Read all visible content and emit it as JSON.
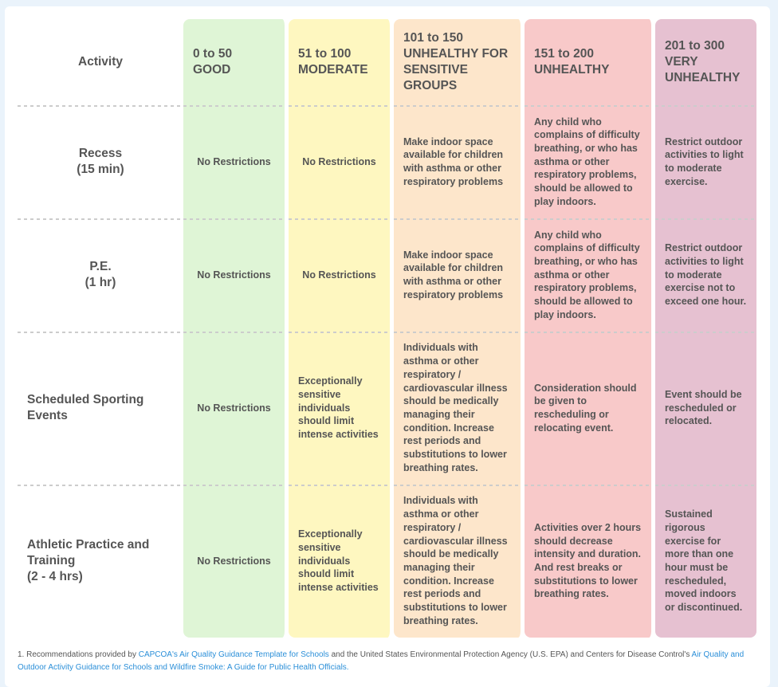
{
  "header": {
    "activity": "Activity",
    "levels": [
      {
        "range": "0 to 50",
        "label": "GOOD",
        "color": "#dff5d6"
      },
      {
        "range": "51 to 100",
        "label": "MODERATE",
        "color": "#fef7c0"
      },
      {
        "range": "101 to 150",
        "label": "UNHEALTHY FOR SENSITIVE GROUPS",
        "color": "#fde6cb"
      },
      {
        "range": "151 to 200",
        "label": "UNHEALTHY",
        "color": "#f8c9c9"
      },
      {
        "range": "201 to 300",
        "label": "VERY UNHEALTHY",
        "color": "#e6c1d1"
      }
    ]
  },
  "rows": [
    {
      "activity": "Recess",
      "sub": "(15 min)",
      "cells": [
        "No Restrictions",
        "No Restrictions",
        "Make indoor space available for children with asthma or other respiratory problems",
        "Any child who complains of difficulty breathing, or who has asthma or other respiratory problems, should be allowed to play indoors.",
        "Restrict outdoor activities to light to moderate exercise."
      ]
    },
    {
      "activity": "P.E.",
      "sub": "(1 hr)",
      "cells": [
        "No Restrictions",
        "No Restrictions",
        "Make indoor space available for children with asthma or other respiratory problems",
        "Any child who complains of difficulty breathing, or who has asthma or other respiratory problems, should be allowed to play indoors.",
        "Restrict outdoor activities to light to moderate exercise not to exceed one hour."
      ]
    },
    {
      "activity": "Scheduled Sporting Events",
      "sub": "",
      "cells": [
        "No Restrictions",
        "Exceptionally sensitive individuals should limit intense activities",
        "Individuals with asthma or other respiratory / cardiovascular illness should be medically managing their condition. Increase rest periods and substitutions to lower breathing rates.",
        "Consideration should be given to rescheduling or relocating event.",
        "Event should be rescheduled or relocated."
      ]
    },
    {
      "activity": "Athletic Practice and Training",
      "sub": "(2 - 4 hrs)",
      "cells": [
        "No Restrictions",
        "Exceptionally sensitive individuals should limit intense activities",
        "Individuals with asthma or other respiratory / cardiovascular illness should be medically managing their condition. Increase rest periods and substitutions to lower breathing rates.",
        "Activities over 2 hours should decrease intensity and duration. And rest breaks or substitutions to lower breathing rates.",
        "Sustained rigorous exercise for more than one hour must be rescheduled, moved indoors or discontinued."
      ]
    }
  ],
  "footnote": {
    "prefix": "1. Recommendations provided by ",
    "link1": "CAPCOA's Air Quality Guidance Template for Schools",
    "middle": " and the United States Environmental Protection Agency (U.S. EPA) and Centers for Disease Control's ",
    "link2": "Air Quality and Outdoor Activity Guidance for Schools and Wildfire Smoke: A Guide for Public Health Officials."
  }
}
